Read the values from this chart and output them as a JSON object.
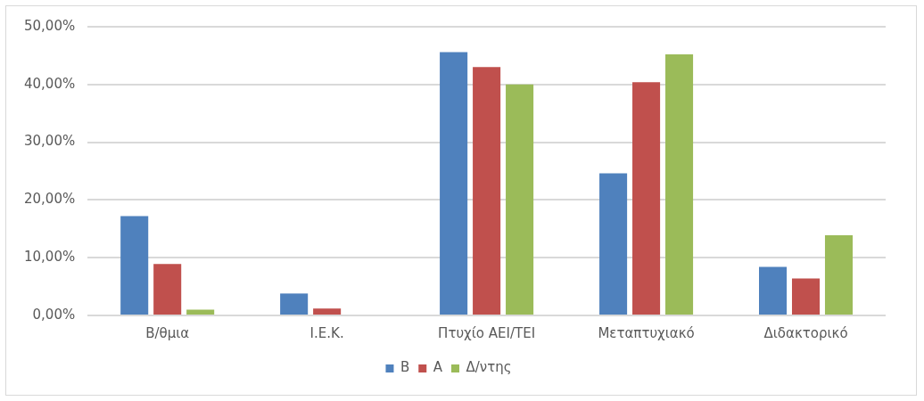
{
  "chart_data": {
    "type": "bar",
    "categories": [
      "Β/θμια",
      "Ι.Ε.Κ.",
      "Πτυχίο ΑΕΙ/ΤΕΙ",
      "Μεταπτυχιακό",
      "Διδακτορικό"
    ],
    "series": [
      {
        "name": "Β",
        "color": "#4f81bd",
        "values": [
          17.2,
          3.8,
          45.6,
          24.6,
          8.4
        ]
      },
      {
        "name": "Α",
        "color": "#c0504d",
        "values": [
          8.9,
          1.2,
          43.0,
          40.4,
          6.4
        ]
      },
      {
        "name": "Δ/ντης",
        "color": "#9bbb59",
        "values": [
          1.0,
          0,
          40.0,
          45.2,
          13.9
        ]
      }
    ],
    "ylim": [
      0,
      50
    ],
    "yticks": [
      {
        "value": 0,
        "label": "0,00%"
      },
      {
        "value": 10,
        "label": "10,00%"
      },
      {
        "value": 20,
        "label": "20,00%"
      },
      {
        "value": 30,
        "label": "30,00%"
      },
      {
        "value": 40,
        "label": "40,00%"
      },
      {
        "value": 50,
        "label": "50,00%"
      }
    ],
    "grid": "y",
    "legend": "bottom"
  }
}
